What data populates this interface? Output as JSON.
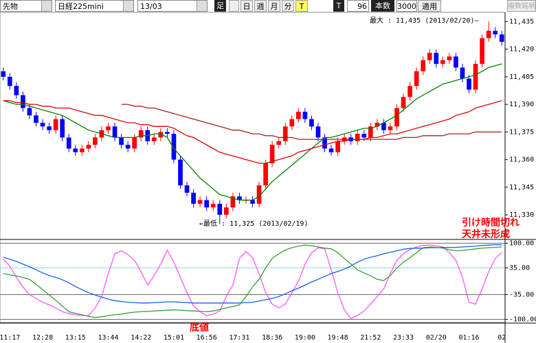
{
  "toolbar": {
    "market": "先物",
    "symbol": "日経225mini",
    "contract": "13/03",
    "bar_label": "足",
    "day": "日",
    "week": "週",
    "month": "月",
    "minute": "分",
    "tick1": "T",
    "tick2": "T",
    "interval": "96",
    "count_label": "本数",
    "count": "3000",
    "apply": "適用",
    "multi": "複数銘柄"
  },
  "annotations": {
    "max": "最大 : 11,435 (2013/02/20)—",
    "min": "←最低 : 11,325 (2013/02/19)",
    "note1": "引け時間切れ",
    "note2": "天井未形成",
    "bottom": "底値"
  },
  "chart_data": [
    {
      "type": "candlestick",
      "categories": [
        null,
        "11:17",
        null,
        null,
        null,
        null,
        "12:28",
        null,
        null,
        null,
        null,
        "13:15",
        null,
        null,
        null,
        null,
        "13:44",
        null,
        null,
        null,
        null,
        "14:22",
        null,
        null,
        null,
        null,
        "15:01",
        null,
        null,
        null,
        null,
        "16:56",
        null,
        null,
        null,
        null,
        "17:31",
        null,
        null,
        null,
        null,
        "18:36",
        null,
        null,
        null,
        null,
        "19:00",
        null,
        null,
        null,
        null,
        "19:48",
        null,
        null,
        null,
        null,
        "21:52",
        null,
        null,
        null,
        null,
        "23:33",
        null,
        null,
        null,
        null,
        "02/20",
        null,
        null,
        null,
        null,
        "01:16",
        null,
        null,
        null,
        null,
        "02"
      ],
      "open": [
        11408,
        11405,
        11400,
        11395,
        11388,
        11384,
        11380,
        11378,
        11376,
        11382,
        11372,
        11366,
        11364,
        11366,
        11368,
        11372,
        11376,
        11378,
        11372,
        11368,
        11366,
        11372,
        11376,
        11370,
        11372,
        11375,
        11374,
        11360,
        11346,
        11342,
        11336,
        11338,
        11334,
        11336,
        11330,
        11334,
        11340,
        11338,
        11338,
        11336,
        11346,
        11358,
        11368,
        11370,
        11378,
        11382,
        11386,
        11382,
        11378,
        11372,
        11366,
        11364,
        11370,
        11372,
        11370,
        11374,
        11372,
        11378,
        11380,
        11376,
        11378,
        11388,
        11394,
        11400,
        11408,
        11414,
        11418,
        11412,
        11414,
        11416,
        11410,
        11404,
        11398,
        11412,
        11426,
        11430,
        11428
      ],
      "high": [
        11410,
        11407,
        11402,
        11397,
        11390,
        11386,
        11382,
        11380,
        11384,
        11384,
        11374,
        11368,
        11368,
        11370,
        11374,
        11378,
        11380,
        11380,
        11374,
        11370,
        11374,
        11378,
        11378,
        11374,
        11377,
        11377,
        11376,
        11362,
        11348,
        11344,
        11340,
        11340,
        11338,
        11338,
        11336,
        11342,
        11342,
        11340,
        11340,
        11348,
        11360,
        11370,
        11372,
        11380,
        11384,
        11388,
        11388,
        11384,
        11380,
        11374,
        11368,
        11372,
        11374,
        11374,
        11376,
        11376,
        11380,
        11382,
        11382,
        11380,
        11390,
        11396,
        11402,
        11410,
        11416,
        11420,
        11420,
        11416,
        11418,
        11418,
        11412,
        11406,
        11414,
        11428,
        11435,
        11432,
        11430
      ],
      "low": [
        11403,
        11398,
        11393,
        11386,
        11382,
        11378,
        11376,
        11374,
        11374,
        11370,
        11364,
        11362,
        11362,
        11364,
        11366,
        11370,
        11374,
        11370,
        11366,
        11364,
        11364,
        11370,
        11368,
        11368,
        11370,
        11372,
        11358,
        11344,
        11340,
        11334,
        11334,
        11332,
        11332,
        11325,
        11328,
        11332,
        11336,
        11336,
        11334,
        11334,
        11344,
        11356,
        11366,
        11368,
        11376,
        11380,
        11380,
        11376,
        11370,
        11364,
        11362,
        11362,
        11368,
        11368,
        11368,
        11370,
        11370,
        11376,
        11374,
        11374,
        11376,
        11386,
        11392,
        11398,
        11406,
        11412,
        11410,
        11410,
        11412,
        11408,
        11402,
        11396,
        11396,
        11410,
        11424,
        11426,
        11422
      ],
      "close": [
        11405,
        11400,
        11395,
        11388,
        11384,
        11380,
        11378,
        11376,
        11382,
        11372,
        11366,
        11364,
        11366,
        11368,
        11372,
        11376,
        11378,
        11372,
        11368,
        11366,
        11372,
        11376,
        11370,
        11372,
        11375,
        11374,
        11360,
        11346,
        11342,
        11336,
        11338,
        11334,
        11336,
        11330,
        11334,
        11340,
        11338,
        11338,
        11336,
        11346,
        11358,
        11368,
        11370,
        11378,
        11382,
        11386,
        11382,
        11378,
        11372,
        11366,
        11364,
        11370,
        11372,
        11370,
        11374,
        11372,
        11378,
        11380,
        11376,
        11378,
        11388,
        11394,
        11400,
        11408,
        11414,
        11418,
        11412,
        11414,
        11416,
        11410,
        11404,
        11398,
        11412,
        11426,
        11430,
        11428,
        11424
      ],
      "up_color": "#ff0000",
      "down_color": "#0000ff",
      "series": [
        {
          "color": "#008000",
          "values": [
            11392,
            11391,
            11390,
            11390,
            11389,
            11388,
            11387,
            11386,
            11385,
            11384,
            11382,
            11380,
            11378,
            11376,
            11375,
            11374,
            11373,
            11372,
            11372,
            11372,
            11372,
            11373,
            11373,
            11374,
            11374,
            11372,
            11366,
            11362,
            11358,
            11354,
            11350,
            11347,
            11344,
            11341,
            11340,
            11339,
            11338,
            11338,
            11338,
            11340,
            11344,
            11348,
            11351,
            11354,
            11357,
            11360,
            11363,
            11366,
            11369,
            11372,
            11372,
            11373,
            11374,
            11375,
            11376,
            11377,
            11377,
            11378,
            11380,
            11382,
            11384,
            11387,
            11390,
            11393,
            11395,
            11397,
            11399,
            11401,
            11402,
            11403,
            11404,
            11405,
            11406,
            11408,
            11410,
            11411,
            11412
          ]
        },
        {
          "color": "#e00000",
          "values": [
            11392,
            11392,
            11391,
            11391,
            11390,
            11390,
            11389,
            11389,
            11388,
            11388,
            11388,
            11387,
            11386,
            11385,
            11384,
            11384,
            11383,
            11382,
            11381,
            11380,
            11380,
            11379,
            11379,
            11378,
            11378,
            11378,
            11377,
            11375,
            11373,
            11372,
            11370,
            11368,
            11366,
            11364,
            11363,
            11362,
            11361,
            11360,
            11359,
            11358,
            11358,
            11359,
            11360,
            11361,
            11362,
            11364,
            11365,
            11366,
            11367,
            11368,
            11369,
            11370,
            11370,
            11371,
            11371,
            11371,
            11372,
            11372,
            11373,
            11374,
            11374,
            11375,
            11376,
            11377,
            11378,
            11379,
            11380,
            11381,
            11382,
            11384,
            11385,
            11386,
            11388,
            11389,
            11390,
            11391,
            11392
          ]
        },
        {
          "color": "#a02020",
          "values": [
            null,
            null,
            null,
            null,
            null,
            null,
            null,
            null,
            null,
            null,
            null,
            null,
            null,
            null,
            null,
            null,
            null,
            null,
            11390,
            11390,
            11389,
            11389,
            11388,
            11388,
            11387,
            11386,
            11385,
            11384,
            11383,
            11382,
            11381,
            11380,
            11379,
            11378,
            11377,
            11376,
            11376,
            11375,
            11374,
            11374,
            11373,
            11373,
            11372,
            11372,
            11372,
            11371,
            11371,
            11371,
            11371,
            11371,
            11371,
            11371,
            11371,
            11371,
            11371,
            11371,
            11371,
            11371,
            11371,
            11371,
            11371,
            11372,
            11372,
            11372,
            11373,
            11373,
            11373,
            11373,
            11374,
            11374,
            11374,
            11374,
            11375,
            11375,
            11375,
            11375,
            11375
          ]
        }
      ],
      "ylim": [
        11317,
        11440
      ],
      "yticks": [
        {
          "value": 11330,
          "label": "11,330"
        },
        {
          "value": 11345,
          "label": "11,345"
        },
        {
          "value": 11360,
          "label": "11,360"
        },
        {
          "value": 11375,
          "label": "11,375"
        },
        {
          "value": 11390,
          "label": "11,390"
        },
        {
          "value": 11405,
          "label": "11,405"
        },
        {
          "value": 11420,
          "label": "11,420"
        },
        {
          "value": 11435,
          "label": "11,435"
        }
      ]
    },
    {
      "type": "line",
      "series": [
        {
          "color": "#ff55ff",
          "values": [
            58,
            40,
            10,
            -15,
            -35,
            -45,
            -55,
            -62,
            -70,
            -80,
            -85,
            -88,
            -90,
            -90,
            -70,
            -40,
            20,
            72,
            80,
            70,
            55,
            25,
            -10,
            15,
            45,
            82,
            50,
            10,
            -30,
            -65,
            -80,
            -90,
            -86,
            -78,
            -40,
            -10,
            60,
            78,
            62,
            20,
            -30,
            -60,
            -70,
            -60,
            -30,
            0,
            45,
            75,
            88,
            85,
            30,
            -30,
            -75,
            -98,
            -90,
            -78,
            -60,
            -40,
            -20,
            20,
            55,
            72,
            83,
            90,
            94,
            95,
            93,
            90,
            75,
            55,
            10,
            -55,
            -60,
            -20,
            25,
            60,
            75
          ]
        },
        {
          "color": "#1060f0",
          "values": [
            63,
            58,
            52,
            45,
            38,
            30,
            22,
            15,
            10,
            4,
            -4,
            -14,
            -22,
            -30,
            -36,
            -42,
            -47,
            -51,
            -53,
            -55,
            -56,
            -57,
            -57,
            -56,
            -55,
            -54,
            -54,
            -55,
            -56,
            -57,
            -57,
            -57,
            -57,
            -57,
            -57,
            -57,
            -57,
            -56,
            -55,
            -52,
            -48,
            -45,
            -40,
            -33,
            -25,
            -18,
            -10,
            -2,
            5,
            13,
            20,
            26,
            32,
            40,
            50,
            58,
            63,
            67,
            72,
            76,
            80,
            84,
            86,
            87,
            87,
            88,
            88,
            89,
            89,
            89,
            90,
            91,
            92,
            94,
            95,
            96,
            96
          ]
        },
        {
          "color": "#33a033",
          "values": [
            20,
            17,
            14,
            10,
            5,
            -8,
            -22,
            -36,
            -50,
            -65,
            -80,
            -84,
            -88,
            -92,
            -95,
            -93,
            -90,
            -88,
            -86,
            -83,
            -81,
            -80,
            -79,
            -78,
            -77,
            -76,
            -75,
            -76,
            -77,
            -78,
            -79,
            -80,
            -78,
            -74,
            -70,
            -66,
            -62,
            -40,
            -15,
            5,
            35,
            60,
            72,
            82,
            88,
            92,
            95,
            93,
            90,
            87,
            85,
            75,
            60,
            45,
            30,
            22,
            14,
            5,
            2,
            15,
            35,
            50,
            62,
            75,
            88,
            90,
            89,
            87,
            83,
            80,
            81,
            83,
            85,
            87,
            88,
            89,
            90
          ]
        }
      ],
      "ylim": [
        -108,
        108
      ],
      "yticks": [
        {
          "value": 100,
          "label": "100.00"
        },
        {
          "value": 35,
          "label": "35.00"
        },
        {
          "value": -35,
          "label": "-35.00"
        },
        {
          "value": -100,
          "label": "-100.00"
        }
      ],
      "grid": true
    }
  ]
}
